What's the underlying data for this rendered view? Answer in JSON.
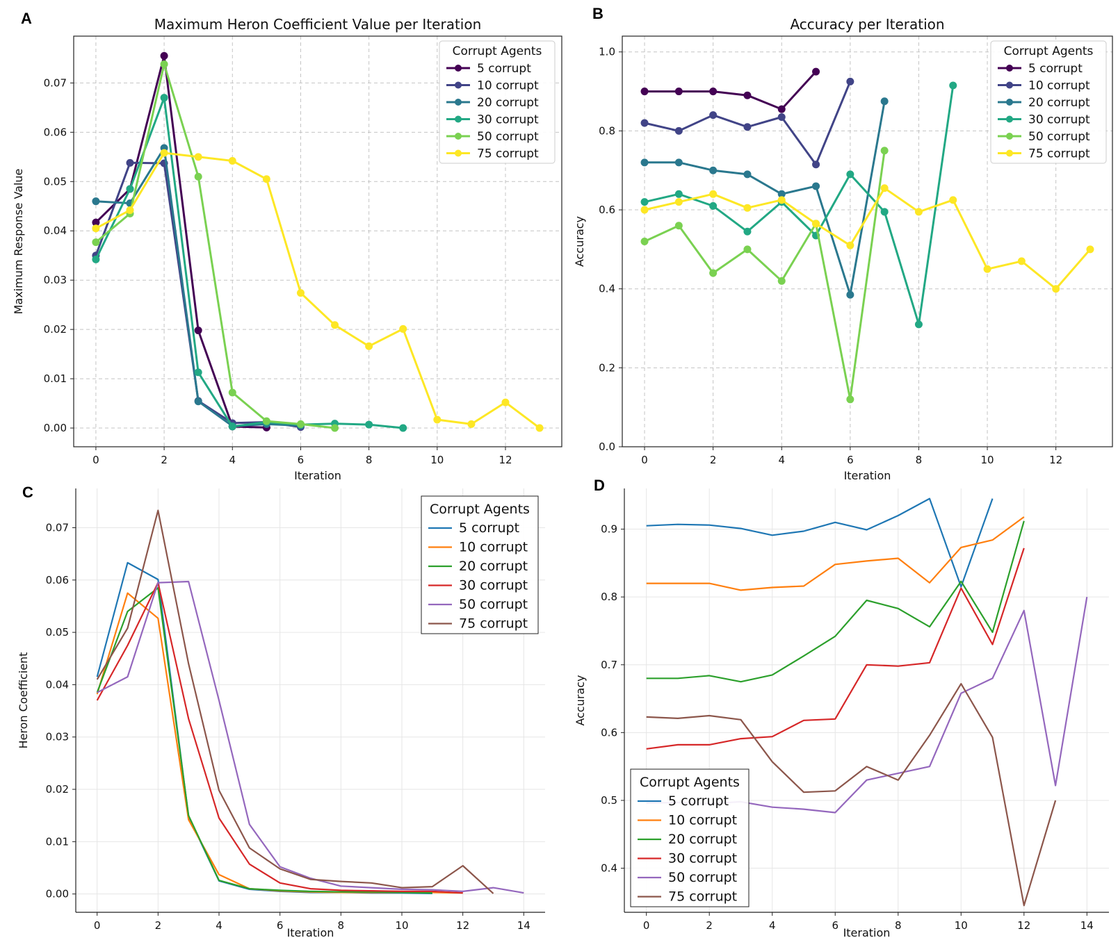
{
  "chart_data": [
    {
      "panel": "A",
      "type": "line",
      "title": "Maximum Heron Coefficient Value per Iteration",
      "xlabel": "Iteration",
      "ylabel": "Maximum Response Value",
      "xlim": [
        -0.65,
        13.65
      ],
      "ylim": [
        -0.0038,
        0.0795
      ],
      "xticks": [
        0,
        2,
        4,
        6,
        8,
        10,
        12
      ],
      "xtick_labels": [
        "0",
        "2",
        "4",
        "6",
        "8",
        "10",
        "12"
      ],
      "yticks": [
        0,
        0.01,
        0.02,
        0.03,
        0.04,
        0.05,
        0.06,
        0.07
      ],
      "ytick_labels": [
        "0.00",
        "0.01",
        "0.02",
        "0.03",
        "0.04",
        "0.05",
        "0.06",
        "0.07"
      ],
      "grid": true,
      "grid_style": "dashed",
      "markers": true,
      "legend_title": "Corrupt Agents",
      "legend_position": "top-right",
      "series": [
        {
          "name": "5 corrupt",
          "color": "#440154",
          "x": [
            0,
            1,
            2,
            3,
            4,
            5
          ],
          "values": [
            0.0417,
            0.0485,
            0.0755,
            0.0198,
            0.0003,
            0.0001
          ]
        },
        {
          "name": "10 corrupt",
          "color": "#414487",
          "x": [
            0,
            1,
            2,
            3,
            4,
            5,
            6
          ],
          "values": [
            0.035,
            0.0538,
            0.0537,
            0.0055,
            0.001,
            0.0012,
            0.0002
          ]
        },
        {
          "name": "20 corrupt",
          "color": "#2a788e",
          "x": [
            0,
            1,
            2,
            3,
            4,
            5,
            6
          ],
          "values": [
            0.046,
            0.0456,
            0.0568,
            0.0054,
            0.0004,
            0.0008,
            0.0005
          ]
        },
        {
          "name": "30 corrupt",
          "color": "#22a884",
          "x": [
            0,
            1,
            2,
            3,
            4,
            5,
            6,
            7,
            8,
            9
          ],
          "values": [
            0.0342,
            0.0485,
            0.067,
            0.0113,
            0.0003,
            0.0012,
            0.0007,
            0.0009,
            0.0007,
            0.0
          ]
        },
        {
          "name": "50 corrupt",
          "color": "#7ad151",
          "x": [
            0,
            1,
            2,
            3,
            4,
            5,
            6,
            7
          ],
          "values": [
            0.0377,
            0.0435,
            0.0738,
            0.051,
            0.0072,
            0.0014,
            0.0008,
            0.0
          ]
        },
        {
          "name": "75 corrupt",
          "color": "#fde725",
          "x": [
            0,
            1,
            2,
            3,
            4,
            5,
            6,
            7,
            8,
            9,
            10,
            11,
            12,
            13
          ],
          "values": [
            0.0405,
            0.0442,
            0.0558,
            0.055,
            0.0542,
            0.0505,
            0.0274,
            0.0209,
            0.0166,
            0.0201,
            0.0017,
            0.0008,
            0.0052,
            0.0
          ]
        }
      ]
    },
    {
      "panel": "B",
      "type": "line",
      "title": "Accuracy per Iteration",
      "xlabel": "Iteration",
      "ylabel": "Accuracy",
      "xlim": [
        -0.65,
        13.65
      ],
      "ylim": [
        0.0,
        1.04
      ],
      "xticks": [
        0,
        2,
        4,
        6,
        8,
        10,
        12
      ],
      "xtick_labels": [
        "0",
        "2",
        "4",
        "6",
        "8",
        "10",
        "12"
      ],
      "yticks": [
        0,
        0.2,
        0.4,
        0.6,
        0.8,
        1.0
      ],
      "ytick_labels": [
        "0.0",
        "0.2",
        "0.4",
        "0.6",
        "0.8",
        "1.0"
      ],
      "grid": true,
      "grid_style": "dashed",
      "markers": true,
      "legend_title": "Corrupt Agents",
      "legend_position": "top-right",
      "series": [
        {
          "name": "5 corrupt",
          "color": "#440154",
          "x": [
            0,
            1,
            2,
            3,
            4,
            5
          ],
          "values": [
            0.9,
            0.9,
            0.9,
            0.89,
            0.855,
            0.95
          ]
        },
        {
          "name": "10 corrupt",
          "color": "#414487",
          "x": [
            0,
            1,
            2,
            3,
            4,
            5,
            6
          ],
          "values": [
            0.82,
            0.8,
            0.84,
            0.81,
            0.835,
            0.715,
            0.925
          ]
        },
        {
          "name": "20 corrupt",
          "color": "#2a788e",
          "x": [
            0,
            1,
            2,
            3,
            4,
            5,
            6,
            7
          ],
          "values": [
            0.72,
            0.72,
            0.7,
            0.69,
            0.64,
            0.66,
            0.385,
            0.875
          ]
        },
        {
          "name": "30 corrupt",
          "color": "#22a884",
          "x": [
            0,
            1,
            2,
            3,
            4,
            5,
            6,
            7,
            8,
            9
          ],
          "values": [
            0.62,
            0.64,
            0.61,
            0.545,
            0.62,
            0.535,
            0.69,
            0.595,
            0.31,
            0.915
          ]
        },
        {
          "name": "50 corrupt",
          "color": "#7ad151",
          "x": [
            0,
            1,
            2,
            3,
            4,
            5,
            6,
            7
          ],
          "values": [
            0.52,
            0.56,
            0.44,
            0.5,
            0.42,
            0.565,
            0.12,
            0.75
          ]
        },
        {
          "name": "75 corrupt",
          "color": "#fde725",
          "x": [
            0,
            1,
            2,
            3,
            4,
            5,
            6,
            7,
            8,
            9,
            10,
            11,
            12,
            13
          ],
          "values": [
            0.6,
            0.62,
            0.64,
            0.605,
            0.625,
            0.565,
            0.51,
            0.655,
            0.595,
            0.625,
            0.45,
            0.47,
            0.4,
            0.5
          ]
        }
      ]
    },
    {
      "panel": "C",
      "type": "line",
      "xlabel": "Iteration",
      "ylabel": "Heron Coefficient",
      "xlim": [
        -0.7,
        14.7
      ],
      "ylim": [
        -0.0035,
        0.0775
      ],
      "xticks": [
        0,
        2,
        4,
        6,
        8,
        10,
        12,
        14
      ],
      "xtick_labels": [
        "0",
        "2",
        "4",
        "6",
        "8",
        "10",
        "12",
        "14"
      ],
      "yticks": [
        0,
        0.01,
        0.02,
        0.03,
        0.04,
        0.05,
        0.06,
        0.07
      ],
      "ytick_labels": [
        "0.00",
        "0.01",
        "0.02",
        "0.03",
        "0.04",
        "0.05",
        "0.06",
        "0.07"
      ],
      "grid": true,
      "grid_style": "solid",
      "markers": false,
      "legend_title": "Corrupt Agents",
      "legend_position": "top-right",
      "series": [
        {
          "name": "5 corrupt",
          "color": "#1f77b4",
          "x": [
            0,
            1,
            2,
            3,
            4,
            5,
            6,
            7,
            8,
            9,
            10,
            11
          ],
          "values": [
            0.0415,
            0.0633,
            0.0601,
            0.0148,
            0.0025,
            0.0009,
            0.0005,
            0.0003,
            0.0003,
            0.0002,
            0.0002,
            0.0001
          ]
        },
        {
          "name": "10 corrupt",
          "color": "#ff7f0e",
          "x": [
            0,
            1,
            2,
            3,
            4,
            5,
            6,
            7,
            8,
            9,
            10,
            11,
            12
          ],
          "values": [
            0.0382,
            0.0575,
            0.0527,
            0.0142,
            0.0037,
            0.001,
            0.0006,
            0.0004,
            0.0003,
            0.0003,
            0.0003,
            0.0003,
            0.0002
          ]
        },
        {
          "name": "20 corrupt",
          "color": "#2ca02c",
          "x": [
            0,
            1,
            2,
            3,
            4,
            5,
            6,
            7,
            8,
            9,
            10,
            11
          ],
          "values": [
            0.0385,
            0.054,
            0.0585,
            0.015,
            0.0026,
            0.001,
            0.0007,
            0.0005,
            0.0004,
            0.0004,
            0.0003,
            0.0002
          ]
        },
        {
          "name": "30 corrupt",
          "color": "#d62728",
          "x": [
            0,
            1,
            2,
            3,
            4,
            5,
            6,
            7,
            8,
            9,
            10,
            11,
            12
          ],
          "values": [
            0.037,
            0.0475,
            0.0595,
            0.0335,
            0.0145,
            0.0057,
            0.0021,
            0.001,
            0.0007,
            0.0006,
            0.0005,
            0.0005,
            0.0002
          ]
        },
        {
          "name": "50 corrupt",
          "color": "#9467bd",
          "x": [
            0,
            1,
            2,
            3,
            4,
            5,
            6,
            7,
            8,
            9,
            10,
            11,
            12,
            13,
            14
          ],
          "values": [
            0.0385,
            0.0415,
            0.0595,
            0.0597,
            0.037,
            0.0133,
            0.0052,
            0.003,
            0.0015,
            0.0012,
            0.0009,
            0.0008,
            0.0005,
            0.0012,
            0.0002
          ]
        },
        {
          "name": "75 corrupt",
          "color": "#8c564b",
          "x": [
            0,
            1,
            2,
            3,
            4,
            5,
            6,
            7,
            8,
            9,
            10,
            11,
            12,
            13
          ],
          "values": [
            0.041,
            0.0508,
            0.0733,
            0.044,
            0.0198,
            0.0088,
            0.0048,
            0.0028,
            0.0024,
            0.0021,
            0.0012,
            0.0014,
            0.0054,
            0.0001
          ]
        }
      ]
    },
    {
      "panel": "D",
      "type": "line",
      "xlabel": "Iteration",
      "ylabel": "Accuracy",
      "xlim": [
        -0.7,
        14.7
      ],
      "ylim": [
        0.335,
        0.96
      ],
      "xticks": [
        0,
        2,
        4,
        6,
        8,
        10,
        12,
        14
      ],
      "xtick_labels": [
        "0",
        "2",
        "4",
        "6",
        "8",
        "10",
        "12",
        "14"
      ],
      "yticks": [
        0.4,
        0.5,
        0.6,
        0.7,
        0.8,
        0.9
      ],
      "ytick_labels": [
        "0.4",
        "0.5",
        "0.6",
        "0.7",
        "0.8",
        "0.9"
      ],
      "grid": true,
      "grid_style": "solid",
      "markers": false,
      "legend_title": "Corrupt Agents",
      "legend_position": "bottom-left",
      "series": [
        {
          "name": "5 corrupt",
          "color": "#1f77b4",
          "x": [
            0,
            1,
            2,
            3,
            4,
            5,
            6,
            7,
            8,
            9,
            10,
            11
          ],
          "values": [
            0.905,
            0.907,
            0.906,
            0.901,
            0.891,
            0.897,
            0.91,
            0.899,
            0.92,
            0.945,
            0.815,
            0.945
          ]
        },
        {
          "name": "10 corrupt",
          "color": "#ff7f0e",
          "x": [
            0,
            1,
            2,
            3,
            4,
            5,
            6,
            7,
            8,
            9,
            10,
            11,
            12
          ],
          "values": [
            0.82,
            0.82,
            0.82,
            0.81,
            0.814,
            0.816,
            0.848,
            0.853,
            0.857,
            0.821,
            0.873,
            0.884,
            0.918
          ]
        },
        {
          "name": "20 corrupt",
          "color": "#2ca02c",
          "x": [
            0,
            1,
            2,
            3,
            4,
            5,
            6,
            7,
            8,
            9,
            10,
            11,
            12
          ],
          "values": [
            0.68,
            0.68,
            0.684,
            0.675,
            0.685,
            0.713,
            0.742,
            0.795,
            0.783,
            0.756,
            0.823,
            0.748,
            0.912
          ]
        },
        {
          "name": "30 corrupt",
          "color": "#d62728",
          "x": [
            0,
            1,
            2,
            3,
            4,
            5,
            6,
            7,
            8,
            9,
            10,
            11,
            12
          ],
          "values": [
            0.576,
            0.582,
            0.582,
            0.591,
            0.594,
            0.618,
            0.62,
            0.7,
            0.698,
            0.703,
            0.813,
            0.73,
            0.872
          ]
        },
        {
          "name": "50 corrupt",
          "color": "#9467bd",
          "x": [
            0,
            1,
            2,
            3,
            4,
            5,
            6,
            7,
            8,
            9,
            10,
            11,
            12,
            13,
            14
          ],
          "values": [
            0.496,
            0.497,
            0.495,
            0.498,
            0.49,
            0.487,
            0.482,
            0.53,
            0.54,
            0.55,
            0.658,
            0.68,
            0.78,
            0.522,
            0.8
          ]
        },
        {
          "name": "75 corrupt",
          "color": "#8c564b",
          "x": [
            0,
            1,
            2,
            3,
            4,
            5,
            6,
            7,
            8,
            9,
            10,
            11,
            12,
            13
          ],
          "values": [
            0.623,
            0.621,
            0.625,
            0.619,
            0.557,
            0.512,
            0.514,
            0.55,
            0.53,
            0.596,
            0.672,
            0.593,
            0.345,
            0.5
          ]
        }
      ]
    }
  ]
}
